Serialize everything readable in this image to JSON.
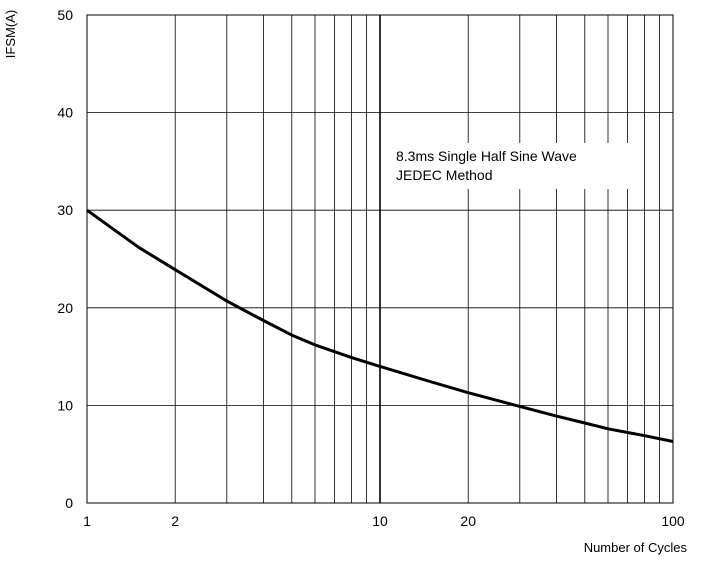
{
  "chart_data": {
    "type": "line",
    "xscale": "log",
    "xlabel": "Number of Cycles",
    "ylabel": "IFSM(A)",
    "xlim": [
      1,
      100
    ],
    "ylim": [
      0,
      50
    ],
    "grid": true,
    "x_tick_labels": [
      "1",
      "2",
      "10",
      "20",
      "100"
    ],
    "x_tick_values": [
      1,
      2,
      10,
      20,
      100
    ],
    "y_tick_labels": [
      "0",
      "10",
      "20",
      "30",
      "40",
      "50"
    ],
    "y_tick_values": [
      0,
      10,
      20,
      30,
      40,
      50
    ],
    "annotation": [
      "8.3ms Single Half Sine Wave",
      "JEDEC Method"
    ],
    "series": [
      {
        "x": [
          1,
          1.5,
          2,
          3,
          4,
          5,
          6,
          8,
          10,
          15,
          20,
          30,
          40,
          50,
          60,
          80,
          100
        ],
        "y": [
          30,
          26.2,
          23.9,
          20.7,
          18.7,
          17.2,
          16.2,
          14.9,
          14.0,
          12.4,
          11.3,
          9.9,
          8.9,
          8.2,
          7.6,
          6.9,
          6.3
        ]
      }
    ],
    "colors": {
      "line": "#000000",
      "grid": "#000000"
    }
  }
}
